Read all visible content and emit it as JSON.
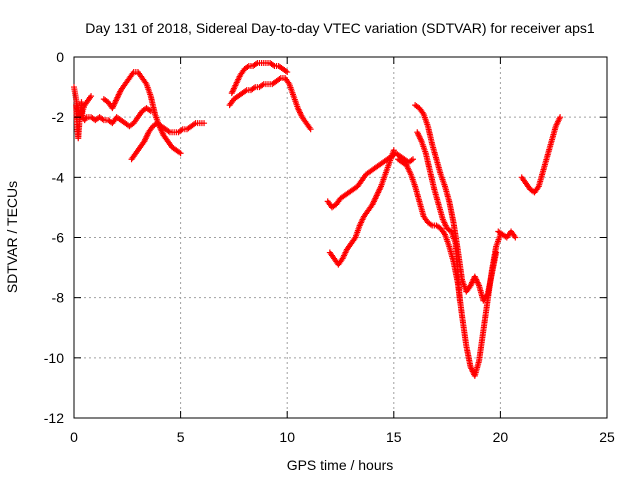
{
  "chart_data": {
    "type": "scatter",
    "title": "Day 131 of 2018, Sidereal Day-to-day VTEC variation (SDTVAR) for receiver aps1",
    "xlabel": "GPS time / hours",
    "ylabel": "SDTVAR / TECUs",
    "xlim": [
      0,
      25
    ],
    "ylim": [
      -12,
      0
    ],
    "xticks": [
      "0",
      "5",
      "10",
      "15",
      "20",
      "25"
    ],
    "yticks": [
      "0",
      "-2",
      "-4",
      "-6",
      "-8",
      "-10",
      "-12"
    ],
    "grid": true,
    "marker": "plus",
    "color": "#ff0000",
    "series": [
      {
        "x": [
          0.1,
          0.15,
          0.2,
          0.25,
          0.3,
          0.35,
          0.4,
          0.5,
          0.6,
          0.8,
          1.0,
          1.2,
          1.4,
          1.6,
          1.8,
          2.0,
          2.2,
          2.4,
          2.6,
          2.8,
          3.0,
          3.2,
          3.4,
          3.6
        ],
        "y": [
          -1.6,
          -2.3,
          -2.7,
          -2.2,
          -1.9,
          -1.5,
          -2.0,
          -2.1,
          -2.0,
          -2.0,
          -2.1,
          -2.0,
          -2.1,
          -2.1,
          -2.2,
          -2.0,
          -2.1,
          -2.2,
          -2.3,
          -2.2,
          -2.0,
          -1.8,
          -1.7,
          -1.8
        ]
      },
      {
        "x": [
          0.0,
          0.05,
          0.1,
          0.15,
          0.2,
          0.3,
          0.4,
          0.5,
          0.6,
          0.7,
          0.8
        ],
        "y": [
          -1.0,
          -1.2,
          -1.4,
          -1.6,
          -1.8,
          -2.0,
          -1.8,
          -1.6,
          -1.5,
          -1.4,
          -1.3
        ]
      },
      {
        "x": [
          1.4,
          1.6,
          1.8,
          2.0,
          2.2,
          2.4,
          2.6,
          2.8,
          3.0,
          3.2,
          3.4,
          3.6,
          3.8,
          4.0,
          4.2,
          4.4,
          4.6,
          4.8,
          5.0
        ],
        "y": [
          -1.4,
          -1.5,
          -1.7,
          -1.4,
          -1.1,
          -0.9,
          -0.7,
          -0.5,
          -0.5,
          -0.7,
          -0.9,
          -1.3,
          -1.9,
          -2.3,
          -2.6,
          -2.8,
          -3.0,
          -3.1,
          -3.2
        ]
      },
      {
        "x": [
          2.7,
          2.9,
          3.1,
          3.3,
          3.5,
          3.7,
          3.9,
          4.1,
          4.3,
          4.5,
          4.7,
          4.9,
          5.1,
          5.3,
          5.5,
          5.7,
          5.9,
          6.1
        ],
        "y": [
          -3.4,
          -3.2,
          -3.0,
          -2.8,
          -2.5,
          -2.3,
          -2.2,
          -2.3,
          -2.4,
          -2.5,
          -2.5,
          -2.5,
          -2.4,
          -2.4,
          -2.3,
          -2.2,
          -2.2,
          -2.2
        ]
      },
      {
        "x": [
          7.3,
          7.5,
          7.7,
          7.9,
          8.1,
          8.3,
          8.5,
          8.7,
          8.9,
          9.1,
          9.3,
          9.5,
          9.7,
          9.9,
          10.1,
          10.3,
          10.5,
          10.7,
          10.9,
          11.1
        ],
        "y": [
          -1.6,
          -1.4,
          -1.3,
          -1.2,
          -1.1,
          -1.1,
          -1.0,
          -1.0,
          -0.9,
          -0.9,
          -0.9,
          -0.8,
          -0.7,
          -0.7,
          -0.9,
          -1.3,
          -1.7,
          -2.0,
          -2.2,
          -2.4
        ]
      },
      {
        "x": [
          7.4,
          7.6,
          7.8,
          8.0,
          8.2,
          8.4,
          8.6,
          8.8,
          9.0,
          9.2,
          9.4,
          9.6,
          9.8,
          10.0
        ],
        "y": [
          -1.2,
          -0.9,
          -0.6,
          -0.4,
          -0.3,
          -0.3,
          -0.2,
          -0.2,
          -0.2,
          -0.2,
          -0.3,
          -0.3,
          -0.4,
          -0.5
        ]
      },
      {
        "x": [
          11.9,
          12.1,
          12.3,
          12.5,
          12.7,
          12.9,
          13.1,
          13.3,
          13.5,
          13.7,
          13.9,
          14.1,
          14.3,
          14.5,
          14.7,
          14.9,
          15.1,
          15.3,
          15.5,
          15.7,
          15.9
        ],
        "y": [
          -4.8,
          -5.0,
          -4.9,
          -4.7,
          -4.6,
          -4.5,
          -4.4,
          -4.3,
          -4.1,
          -3.9,
          -3.8,
          -3.7,
          -3.6,
          -3.5,
          -3.4,
          -3.3,
          -3.2,
          -3.3,
          -3.4,
          -3.5,
          -3.4
        ]
      },
      {
        "x": [
          12.0,
          12.2,
          12.4,
          12.6,
          12.8,
          13.0,
          13.2,
          13.4,
          13.6,
          13.8,
          14.0,
          14.2,
          14.4,
          14.6,
          14.8,
          15.0
        ],
        "y": [
          -6.5,
          -6.7,
          -6.9,
          -6.7,
          -6.4,
          -6.2,
          -6.0,
          -5.6,
          -5.3,
          -5.1,
          -4.9,
          -4.6,
          -4.3,
          -3.9,
          -3.5,
          -3.1
        ]
      },
      {
        "x": [
          15.2,
          15.4,
          15.6,
          15.8,
          16.0,
          16.2,
          16.4,
          16.6,
          16.8,
          17.0,
          17.2,
          17.4,
          17.6,
          17.8,
          18.0,
          18.2,
          18.4,
          18.6,
          18.8,
          19.0,
          19.2,
          19.4,
          19.6,
          19.8,
          20.0
        ],
        "y": [
          -3.4,
          -3.5,
          -3.6,
          -3.9,
          -4.3,
          -4.8,
          -5.3,
          -5.5,
          -5.6,
          -5.6,
          -5.7,
          -5.9,
          -6.3,
          -6.8,
          -7.5,
          -8.6,
          -9.6,
          -10.3,
          -10.6,
          -10.1,
          -9.1,
          -8.1,
          -7.1,
          -6.3,
          -5.9
        ]
      },
      {
        "x": [
          16.0,
          16.2,
          16.4,
          16.6,
          16.8,
          17.0,
          17.2,
          17.4,
          17.6,
          17.8,
          18.0,
          18.2,
          18.4,
          18.6,
          18.8,
          19.0,
          19.2,
          19.4,
          19.6,
          19.8
        ],
        "y": [
          -1.6,
          -1.7,
          -1.9,
          -2.3,
          -2.9,
          -3.4,
          -3.9,
          -4.3,
          -4.8,
          -5.5,
          -6.4,
          -7.4,
          -7.8,
          -7.6,
          -7.3,
          -7.6,
          -8.1,
          -7.9,
          -7.2,
          -6.5
        ]
      },
      {
        "x": [
          16.1,
          16.3,
          16.5,
          16.7,
          16.9,
          17.1,
          17.3,
          17.5,
          17.7,
          17.9,
          18.1
        ],
        "y": [
          -2.5,
          -2.8,
          -3.2,
          -3.8,
          -4.4,
          -4.9,
          -5.4,
          -5.7,
          -5.8,
          -6.2,
          -8.1
        ]
      },
      {
        "x": [
          19.9,
          20.1,
          20.3,
          20.5,
          20.7
        ],
        "y": [
          -5.8,
          -5.9,
          -6.0,
          -5.8,
          -6.0
        ]
      },
      {
        "x": [
          21.0,
          21.2,
          21.4,
          21.6,
          21.8,
          22.0,
          22.2,
          22.4,
          22.6,
          22.8
        ],
        "y": [
          -4.0,
          -4.2,
          -4.4,
          -4.5,
          -4.3,
          -3.8,
          -3.3,
          -2.8,
          -2.3,
          -2.0
        ]
      }
    ]
  }
}
